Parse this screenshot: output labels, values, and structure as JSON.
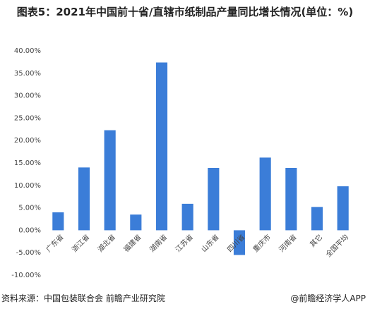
{
  "chart_data": {
    "type": "bar",
    "title": "图表5：2021年中国前十省/直辖市纸制品产量同比增长情况(单位：%)",
    "categories": [
      "广东省",
      "浙江省",
      "湖北省",
      "福建省",
      "湖南省",
      "江苏省",
      "山东省",
      "四川省",
      "重庆市",
      "河南省",
      "其它",
      "全国平均"
    ],
    "values": [
      4.0,
      14.0,
      22.3,
      3.5,
      37.4,
      5.9,
      13.9,
      -5.5,
      16.2,
      13.9,
      5.2,
      9.8
    ],
    "color": "#3b7dd8",
    "ylim": [
      -10,
      40
    ],
    "yticks": [
      {
        "value": -10,
        "label": "-10.00%"
      },
      {
        "value": -5,
        "label": "-5.00%"
      },
      {
        "value": 0,
        "label": "0.00%"
      },
      {
        "value": 5,
        "label": "5.00%"
      },
      {
        "value": 10,
        "label": "10.00%"
      },
      {
        "value": 15,
        "label": "15.00%"
      },
      {
        "value": 20,
        "label": "20.00%"
      },
      {
        "value": 25,
        "label": "25.00%"
      },
      {
        "value": 30,
        "label": "30.00%"
      },
      {
        "value": 35,
        "label": "35.00%"
      },
      {
        "value": 40,
        "label": "40.00%"
      }
    ],
    "grid": false,
    "source": "资料来源：中国包装联合会 前瞻产业研究院",
    "brand": "@前瞻经济学人APP"
  }
}
